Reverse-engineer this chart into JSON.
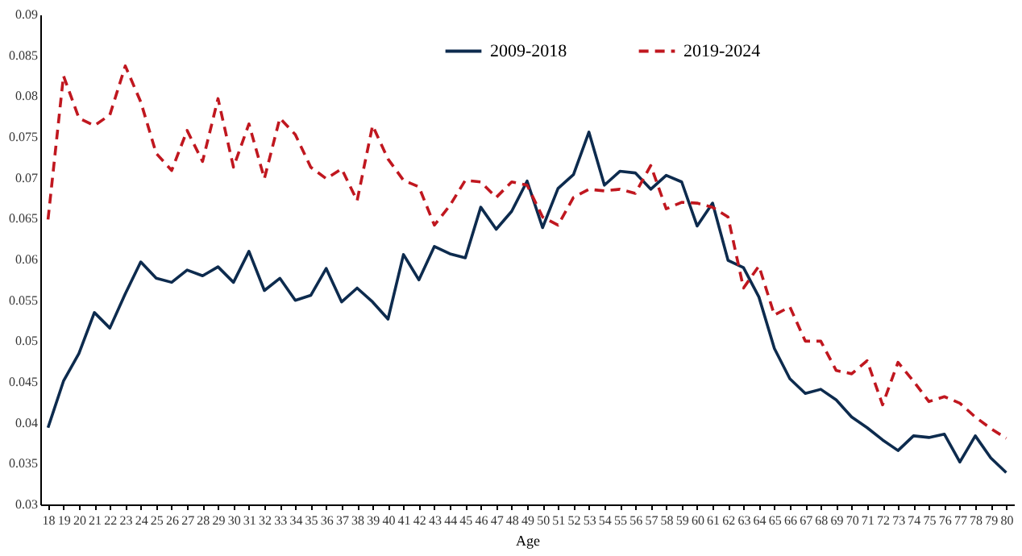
{
  "chart_data": {
    "type": "line",
    "xlabel": "Age",
    "categories": [
      "18",
      "19",
      "20",
      "21",
      "22",
      "23",
      "24",
      "25",
      "26",
      "27",
      "28",
      "29",
      "30",
      "31",
      "32",
      "33",
      "34",
      "35",
      "36",
      "37",
      "38",
      "39",
      "40",
      "41",
      "42",
      "43",
      "44",
      "45",
      "46",
      "47",
      "48",
      "49",
      "50",
      "51",
      "52",
      "53",
      "54",
      "55",
      "56",
      "57",
      "58",
      "59",
      "60",
      "61",
      "62",
      "63",
      "64",
      "65",
      "66",
      "67",
      "68",
      "69",
      "70",
      "71",
      "72",
      "73",
      "74",
      "75",
      "76",
      "77",
      "78",
      "79",
      "80"
    ],
    "series": [
      {
        "name": "2009-2018",
        "color": "#0d2b4e",
        "line_style": "solid",
        "values": [
          0.0394,
          0.0451,
          0.0485,
          0.0535,
          0.0516,
          0.0558,
          0.0597,
          0.0577,
          0.0572,
          0.0587,
          0.058,
          0.0591,
          0.0572,
          0.061,
          0.0562,
          0.0577,
          0.055,
          0.0556,
          0.0589,
          0.0548,
          0.0565,
          0.0548,
          0.0527,
          0.0606,
          0.0575,
          0.0616,
          0.0607,
          0.0602,
          0.0664,
          0.0637,
          0.0659,
          0.0696,
          0.0639,
          0.0687,
          0.0704,
          0.0756,
          0.0691,
          0.0708,
          0.0706,
          0.0686,
          0.0703,
          0.0695,
          0.0641,
          0.0669,
          0.0599,
          0.059,
          0.0554,
          0.0491,
          0.0454,
          0.0436,
          0.0441,
          0.0428,
          0.0407,
          0.0394,
          0.0379,
          0.0366,
          0.0384,
          0.0382,
          0.0386,
          0.0352,
          0.0384,
          0.0357,
          0.0339
        ]
      },
      {
        "name": "2019-2024",
        "color": "#c0171f",
        "line_style": "dashed",
        "values": [
          0.0649,
          0.0825,
          0.0773,
          0.0764,
          0.0777,
          0.0837,
          0.0793,
          0.073,
          0.0709,
          0.0758,
          0.072,
          0.0797,
          0.0713,
          0.0766,
          0.0699,
          0.0773,
          0.0753,
          0.0713,
          0.0699,
          0.0711,
          0.0672,
          0.0764,
          0.0723,
          0.0697,
          0.0689,
          0.0642,
          0.0666,
          0.0697,
          0.0695,
          0.0676,
          0.0695,
          0.0691,
          0.0652,
          0.0642,
          0.0676,
          0.0686,
          0.0684,
          0.0686,
          0.0681,
          0.0715,
          0.0662,
          0.067,
          0.0669,
          0.0664,
          0.0652,
          0.0565,
          0.0592,
          0.0532,
          0.0542,
          0.05,
          0.05,
          0.0464,
          0.046,
          0.0476,
          0.0422,
          0.0474,
          0.0451,
          0.0426,
          0.0432,
          0.0424,
          0.0407,
          0.0393,
          0.0381
        ]
      }
    ],
    "ylim": [
      0.03,
      0.09
    ],
    "yticks": [
      0.03,
      0.035,
      0.04,
      0.045,
      0.05,
      0.055,
      0.06,
      0.065,
      0.07,
      0.075,
      0.08,
      0.085,
      0.09
    ],
    "grid": false,
    "legend": "top",
    "marker": "none"
  }
}
